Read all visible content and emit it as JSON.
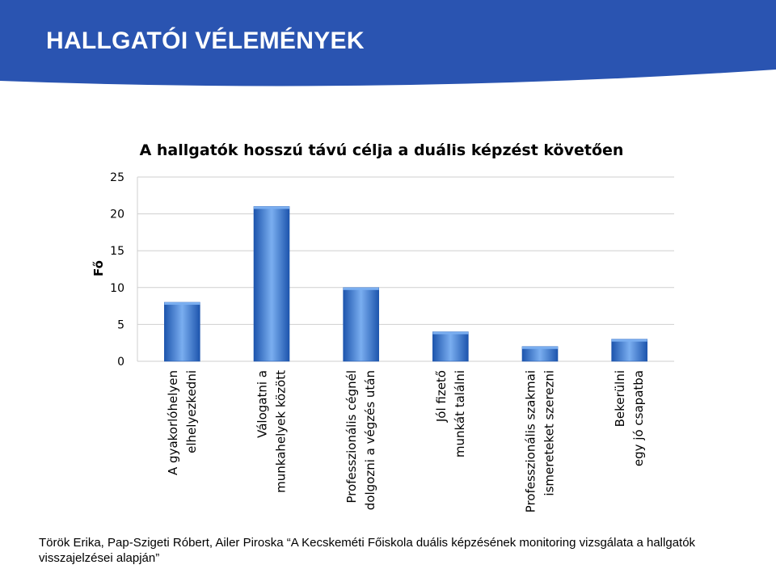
{
  "header": {
    "title": "HALLGATÓI VÉLEMÉNYEK"
  },
  "colors": {
    "banner": "#2a54b1",
    "bar_light": "#7aaef0",
    "bar_mid": "#3d7fdc",
    "bar_dark": "#1d55ad",
    "grid": "#cfcfcf"
  },
  "chart_data": {
    "type": "bar",
    "title": "A hallgatók hosszú távú célja a duális képzést követően",
    "ylabel": "Fő",
    "xlabel": "",
    "ylim": [
      0,
      25
    ],
    "yticks": [
      0,
      5,
      10,
      15,
      20,
      25
    ],
    "grid": true,
    "legend": "none",
    "categories": [
      {
        "lines": [
          "A gyakorlóhelyen",
          "elhelyezkedni"
        ]
      },
      {
        "lines": [
          "Válogatni  a",
          "munkahelyek  között"
        ]
      },
      {
        "lines": [
          "Professzionális cégnél",
          "dolgozni  a végzés után"
        ]
      },
      {
        "lines": [
          "Jól fizető",
          "munkát találni"
        ]
      },
      {
        "lines": [
          "Professzionális szakmai",
          "ismereteket  szerezni"
        ]
      },
      {
        "lines": [
          "Bekerülni",
          "egy jó csapatba"
        ]
      }
    ],
    "values": [
      8,
      21,
      10,
      4,
      2,
      3
    ]
  },
  "footer": {
    "citation": "Török Erika, Pap-Szigeti Róbert, Ailer Piroska “A Kecskeméti Főiskola duális képzésének monitoring vizsgálata a hallgatók visszajelzései alapján”"
  }
}
